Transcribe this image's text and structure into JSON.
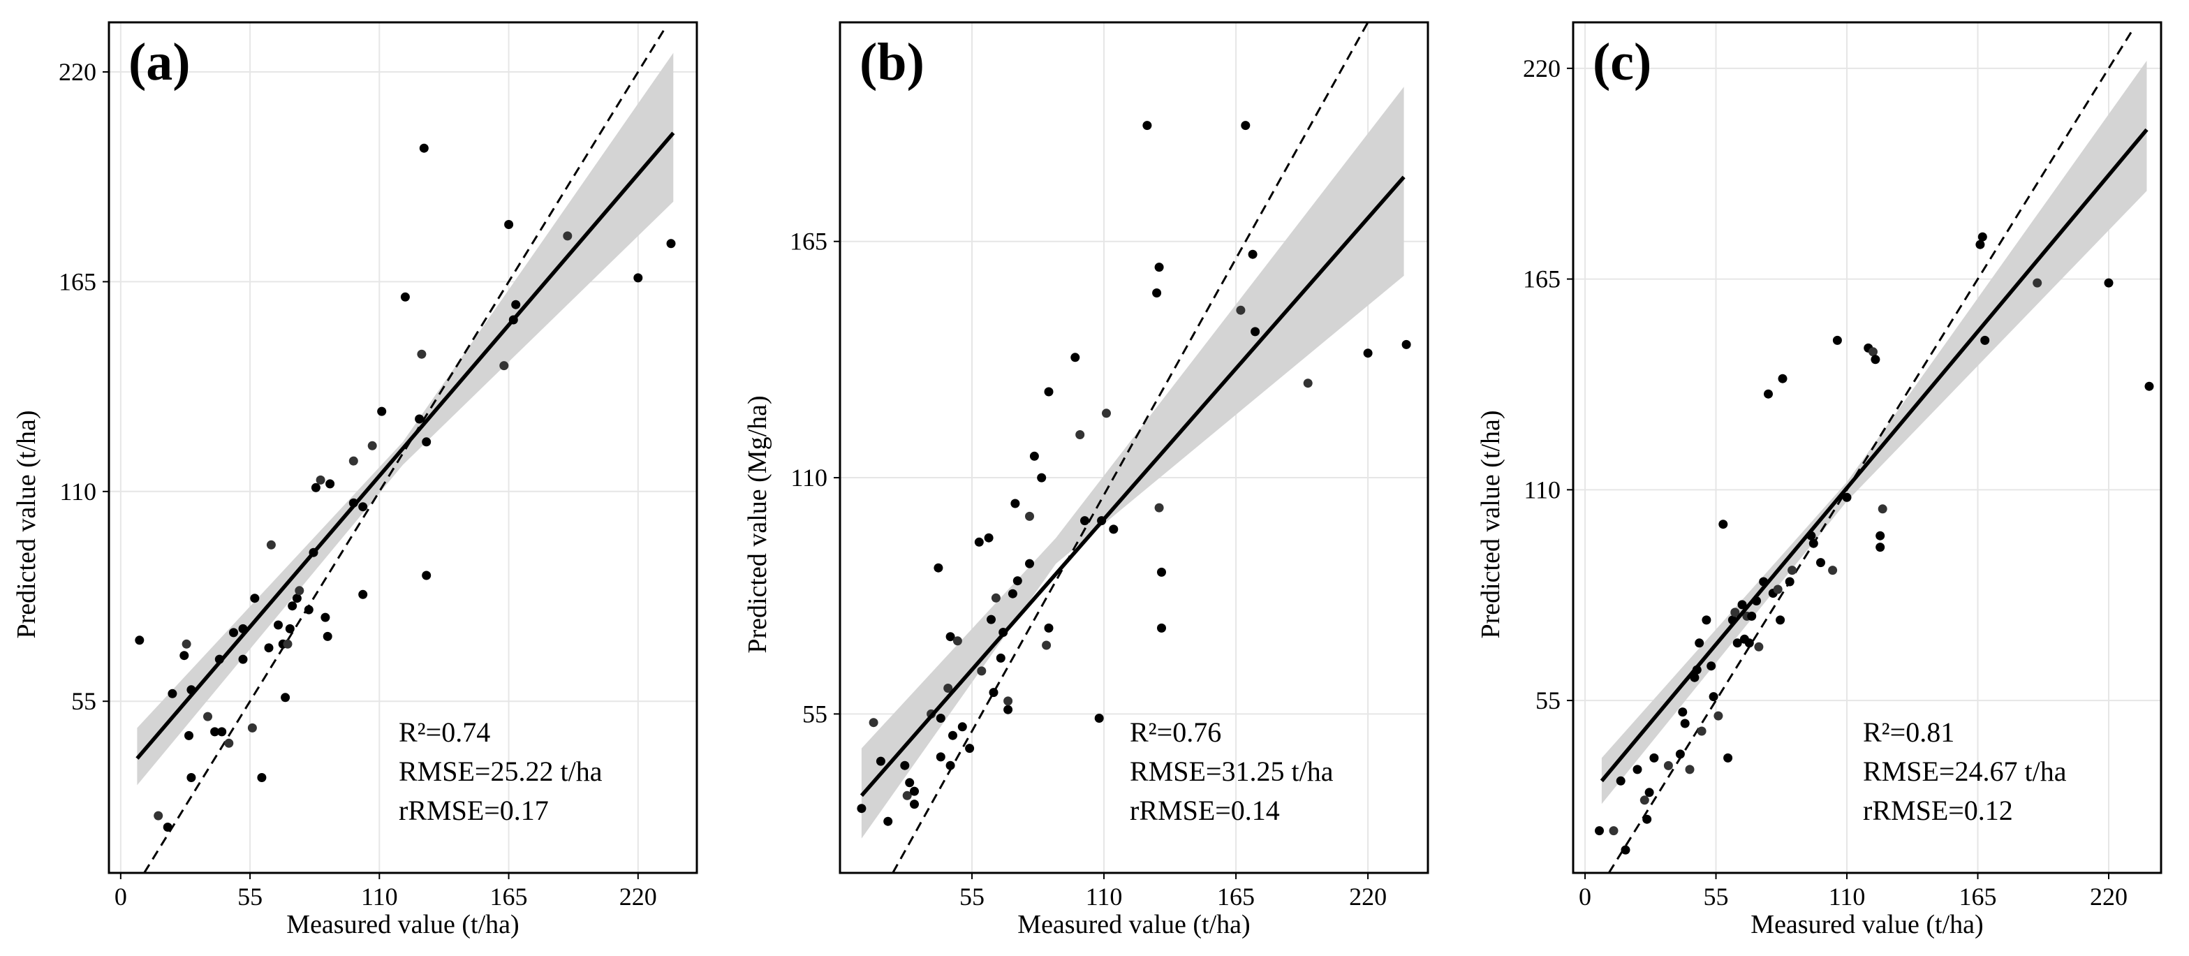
{
  "figure": {
    "panels": [
      "(a)",
      "(b)",
      "(c)"
    ]
  },
  "chart_data": [
    {
      "type": "scatter",
      "panel_label": "(a)",
      "xlabel": "Measured value (t/ha)",
      "ylabel": "Predicted value (t/ha)",
      "xlim": [
        -5,
        245
      ],
      "ylim": [
        10,
        233
      ],
      "x_ticks": [
        0,
        55,
        110,
        165,
        220
      ],
      "x_tick_labels": [
        "0",
        "55",
        "110",
        "165",
        "220"
      ],
      "y_ticks": [
        55,
        110,
        165,
        220
      ],
      "y_tick_labels": [
        "55",
        "110",
        "165",
        "220"
      ],
      "fit_line": {
        "x": [
          7,
          235
        ],
        "y": [
          40,
          204
        ]
      },
      "confidence_band": {
        "x": [
          7,
          120,
          235
        ],
        "lower": [
          33,
          117,
          186
        ],
        "upper": [
          48,
          123,
          225
        ]
      },
      "identity_line": {
        "x": [
          10,
          232
        ],
        "y": [
          10,
          232
        ]
      },
      "points": [
        [
          8,
          71
        ],
        [
          16,
          25
        ],
        [
          20,
          22
        ],
        [
          22,
          57
        ],
        [
          27,
          67
        ],
        [
          28,
          70
        ],
        [
          29,
          46
        ],
        [
          30,
          58
        ],
        [
          30,
          35
        ],
        [
          37,
          51
        ],
        [
          40,
          47
        ],
        [
          42,
          66
        ],
        [
          43,
          47
        ],
        [
          46,
          44
        ],
        [
          48,
          73
        ],
        [
          52,
          74
        ],
        [
          52,
          66
        ],
        [
          56,
          48
        ],
        [
          57,
          82
        ],
        [
          60,
          35
        ],
        [
          63,
          69
        ],
        [
          64,
          96
        ],
        [
          67,
          75
        ],
        [
          69,
          70
        ],
        [
          70,
          56
        ],
        [
          71,
          70
        ],
        [
          72,
          74
        ],
        [
          73,
          80
        ],
        [
          75,
          82
        ],
        [
          76,
          84
        ],
        [
          80,
          79
        ],
        [
          82,
          94
        ],
        [
          83,
          111
        ],
        [
          85,
          113
        ],
        [
          87,
          77
        ],
        [
          88,
          72
        ],
        [
          89,
          112
        ],
        [
          99,
          118
        ],
        [
          99,
          107
        ],
        [
          103,
          106
        ],
        [
          103,
          83
        ],
        [
          107,
          122
        ],
        [
          111,
          131
        ],
        [
          121,
          161
        ],
        [
          127,
          129
        ],
        [
          128,
          146
        ],
        [
          129,
          200
        ],
        [
          130,
          123
        ],
        [
          130,
          88
        ],
        [
          163,
          143
        ],
        [
          165,
          180
        ],
        [
          167,
          155
        ],
        [
          168,
          159
        ],
        [
          190,
          177
        ],
        [
          220,
          166
        ],
        [
          234,
          175
        ]
      ],
      "stats": [
        "R²=0.74",
        "RMSE=25.22 t/ha",
        "rRMSE=0.17"
      ]
    },
    {
      "type": "scatter",
      "panel_label": "(b)",
      "xlabel": "Measured value (t/ha)",
      "ylabel": "Predicted value (Mg/ha)",
      "xlim": [
        0,
        245
      ],
      "ylim": [
        18,
        216
      ],
      "x_ticks": [
        55,
        110,
        165,
        220
      ],
      "x_tick_labels": [
        "55",
        "110",
        "165",
        "220"
      ],
      "y_ticks": [
        55,
        110,
        165
      ],
      "y_tick_labels": [
        "55",
        "110",
        "165"
      ],
      "fit_line": {
        "x": [
          9,
          235
        ],
        "y": [
          36,
          180
        ]
      },
      "confidence_band": {
        "x": [
          9,
          90,
          235
        ],
        "lower": [
          26,
          90,
          157
        ],
        "upper": [
          47,
          96,
          201
        ]
      },
      "identity_line": {
        "x": [
          22,
          220
        ],
        "y": [
          18,
          216
        ]
      },
      "points": [
        [
          9,
          33
        ],
        [
          14,
          53
        ],
        [
          17,
          44
        ],
        [
          20,
          30
        ],
        [
          27,
          43
        ],
        [
          28,
          36
        ],
        [
          29,
          39
        ],
        [
          31,
          34
        ],
        [
          31,
          37
        ],
        [
          38,
          55
        ],
        [
          41,
          89
        ],
        [
          42,
          45
        ],
        [
          42,
          54
        ],
        [
          45,
          61
        ],
        [
          46,
          43
        ],
        [
          46,
          73
        ],
        [
          47,
          50
        ],
        [
          49,
          72
        ],
        [
          51,
          52
        ],
        [
          54,
          47
        ],
        [
          58,
          95
        ],
        [
          59,
          65
        ],
        [
          62,
          96
        ],
        [
          63,
          77
        ],
        [
          64,
          60
        ],
        [
          65,
          82
        ],
        [
          67,
          68
        ],
        [
          68,
          74
        ],
        [
          70,
          56
        ],
        [
          70,
          58
        ],
        [
          72,
          83
        ],
        [
          73,
          104
        ],
        [
          74,
          86
        ],
        [
          79,
          101
        ],
        [
          79,
          90
        ],
        [
          81,
          115
        ],
        [
          84,
          110
        ],
        [
          86,
          71
        ],
        [
          87,
          130
        ],
        [
          87,
          75
        ],
        [
          98,
          138
        ],
        [
          100,
          120
        ],
        [
          102,
          100
        ],
        [
          108,
          54
        ],
        [
          109,
          100
        ],
        [
          111,
          125
        ],
        [
          114,
          98
        ],
        [
          128,
          192
        ],
        [
          132,
          153
        ],
        [
          133,
          103
        ],
        [
          133,
          159
        ],
        [
          134,
          88
        ],
        [
          134,
          75
        ],
        [
          167,
          149
        ],
        [
          169,
          192
        ],
        [
          172,
          162
        ],
        [
          173,
          144
        ],
        [
          195,
          132
        ],
        [
          220,
          139
        ],
        [
          236,
          141
        ]
      ],
      "stats": [
        "R²=0.76",
        "RMSE=31.25 t/ha",
        "rRMSE=0.14"
      ]
    },
    {
      "type": "scatter",
      "panel_label": "(c)",
      "xlabel": "Measured value (t/ha)",
      "ylabel": "Predicted value (t/ha)",
      "xlim": [
        -5,
        242
      ],
      "ylim": [
        10,
        232
      ],
      "x_ticks": [
        0,
        55,
        110,
        165,
        220
      ],
      "x_tick_labels": [
        "0",
        "55",
        "110",
        "165",
        "220"
      ],
      "y_ticks": [
        55,
        110,
        165,
        220
      ],
      "y_tick_labels": [
        "55",
        "110",
        "165",
        "220"
      ],
      "fit_line": {
        "x": [
          7,
          236
        ],
        "y": [
          34,
          204
        ]
      },
      "confidence_band": {
        "x": [
          7,
          110,
          236
        ],
        "lower": [
          28,
          107,
          188
        ],
        "upper": [
          40,
          112,
          222
        ]
      },
      "identity_line": {
        "x": [
          10,
          230
        ],
        "y": [
          10,
          230
        ]
      },
      "points": [
        [
          6,
          21
        ],
        [
          12,
          21
        ],
        [
          15,
          34
        ],
        [
          17,
          16
        ],
        [
          22,
          37
        ],
        [
          25,
          29
        ],
        [
          26,
          24
        ],
        [
          27,
          31
        ],
        [
          29,
          40
        ],
        [
          35,
          38
        ],
        [
          40,
          41
        ],
        [
          41,
          52
        ],
        [
          42,
          49
        ],
        [
          44,
          37
        ],
        [
          46,
          61
        ],
        [
          47,
          63
        ],
        [
          48,
          70
        ],
        [
          49,
          47
        ],
        [
          51,
          76
        ],
        [
          53,
          64
        ],
        [
          54,
          56
        ],
        [
          56,
          51
        ],
        [
          58,
          101
        ],
        [
          60,
          40
        ],
        [
          62,
          76
        ],
        [
          63,
          78
        ],
        [
          64,
          70
        ],
        [
          66,
          80
        ],
        [
          67,
          71
        ],
        [
          68,
          77
        ],
        [
          69,
          70
        ],
        [
          70,
          77
        ],
        [
          72,
          81
        ],
        [
          73,
          69
        ],
        [
          75,
          86
        ],
        [
          77,
          135
        ],
        [
          79,
          83
        ],
        [
          81,
          84
        ],
        [
          82,
          76
        ],
        [
          83,
          139
        ],
        [
          86,
          86
        ],
        [
          87,
          89
        ],
        [
          95,
          98
        ],
        [
          96,
          96
        ],
        [
          99,
          91
        ],
        [
          104,
          89
        ],
        [
          106,
          149
        ],
        [
          110,
          108
        ],
        [
          119,
          147
        ],
        [
          121,
          146
        ],
        [
          122,
          144
        ],
        [
          124,
          98
        ],
        [
          124,
          95
        ],
        [
          125,
          105
        ],
        [
          166,
          174
        ],
        [
          167,
          176
        ],
        [
          168,
          149
        ],
        [
          190,
          164
        ],
        [
          220,
          164
        ],
        [
          237,
          137
        ]
      ],
      "stats": [
        "R²=0.81",
        "RMSE=24.67 t/ha",
        "rRMSE=0.12"
      ]
    }
  ]
}
